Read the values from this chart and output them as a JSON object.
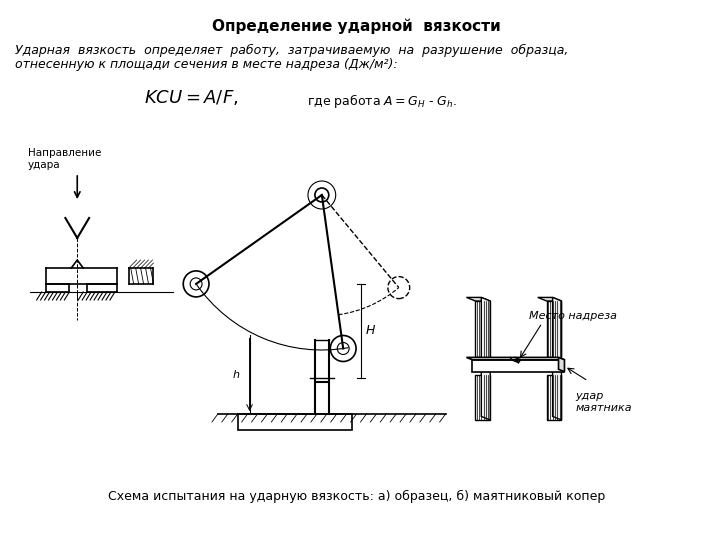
{
  "title": "Определение ударной  вязкости",
  "title_fontsize": 11,
  "body_text_line1": "Ударная  вязкость  определяет  работу,  затрачиваемую  на  разрушение  образца,",
  "body_text_line2": "отнесенную к площади сечения в месте надреза (Дж/м²):",
  "formula": "$KCU = A/ F,$",
  "formula_note": "где работа $A = G_H$ - $G_h$.",
  "caption": "Схема испытания на ударную вязкость: а) образец, б) маятниковый копер",
  "bg_color": "#ffffff",
  "text_color": "#000000",
  "font_size_body": 9,
  "font_size_caption": 9
}
